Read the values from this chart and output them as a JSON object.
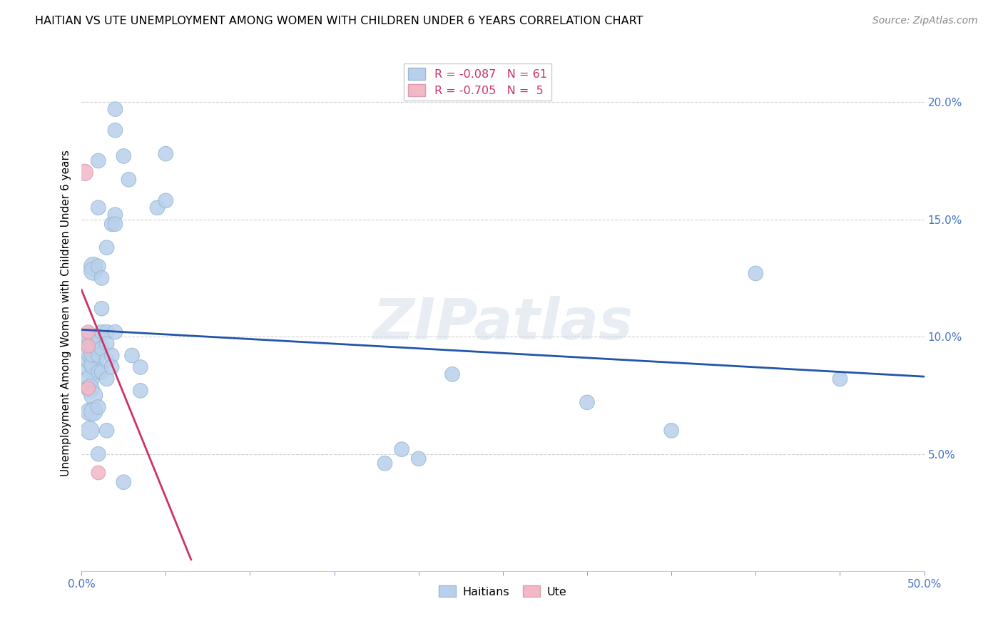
{
  "title": "HAITIAN VS UTE UNEMPLOYMENT AMONG WOMEN WITH CHILDREN UNDER 6 YEARS CORRELATION CHART",
  "source": "Source: ZipAtlas.com",
  "ylabel": "Unemployment Among Women with Children Under 6 years",
  "xlim": [
    0.0,
    0.5
  ],
  "ylim": [
    0.0,
    0.22
  ],
  "xticks_show": [
    0.0,
    0.5
  ],
  "yticks": [
    0.05,
    0.1,
    0.15,
    0.2
  ],
  "blue_color": "#b8d0ea",
  "blue_edge_color": "#9ab8d8",
  "pink_color": "#f2b8c6",
  "pink_edge_color": "#e09ab0",
  "blue_line_color": "#2255aa",
  "pink_line_color": "#cc3366",
  "watermark": "ZIPatlas",
  "legend_r_blue": "R = -0.087",
  "legend_n_blue": "N = 61",
  "legend_r_pink": "R = -0.705",
  "legend_n_pink": "N =  5",
  "blue_scatter": [
    [
      0.005,
      0.097
    ],
    [
      0.005,
      0.086
    ],
    [
      0.005,
      0.082
    ],
    [
      0.005,
      0.09
    ],
    [
      0.005,
      0.1
    ],
    [
      0.005,
      0.078
    ],
    [
      0.005,
      0.093
    ],
    [
      0.005,
      0.068
    ],
    [
      0.005,
      0.06
    ],
    [
      0.007,
      0.13
    ],
    [
      0.007,
      0.128
    ],
    [
      0.007,
      0.088
    ],
    [
      0.007,
      0.075
    ],
    [
      0.007,
      0.093
    ],
    [
      0.007,
      0.097
    ],
    [
      0.007,
      0.068
    ],
    [
      0.01,
      0.175
    ],
    [
      0.01,
      0.155
    ],
    [
      0.01,
      0.13
    ],
    [
      0.01,
      0.1
    ],
    [
      0.01,
      0.098
    ],
    [
      0.01,
      0.092
    ],
    [
      0.01,
      0.085
    ],
    [
      0.01,
      0.07
    ],
    [
      0.01,
      0.05
    ],
    [
      0.012,
      0.125
    ],
    [
      0.012,
      0.112
    ],
    [
      0.012,
      0.102
    ],
    [
      0.012,
      0.095
    ],
    [
      0.012,
      0.085
    ],
    [
      0.015,
      0.138
    ],
    [
      0.015,
      0.102
    ],
    [
      0.015,
      0.097
    ],
    [
      0.015,
      0.09
    ],
    [
      0.015,
      0.082
    ],
    [
      0.015,
      0.06
    ],
    [
      0.018,
      0.148
    ],
    [
      0.018,
      0.092
    ],
    [
      0.018,
      0.087
    ],
    [
      0.02,
      0.197
    ],
    [
      0.02,
      0.188
    ],
    [
      0.02,
      0.152
    ],
    [
      0.02,
      0.148
    ],
    [
      0.02,
      0.102
    ],
    [
      0.025,
      0.177
    ],
    [
      0.025,
      0.038
    ],
    [
      0.028,
      0.167
    ],
    [
      0.03,
      0.092
    ],
    [
      0.035,
      0.087
    ],
    [
      0.035,
      0.077
    ],
    [
      0.045,
      0.155
    ],
    [
      0.05,
      0.178
    ],
    [
      0.05,
      0.158
    ],
    [
      0.18,
      0.046
    ],
    [
      0.19,
      0.052
    ],
    [
      0.2,
      0.048
    ],
    [
      0.22,
      0.084
    ],
    [
      0.3,
      0.072
    ],
    [
      0.35,
      0.06
    ],
    [
      0.4,
      0.127
    ],
    [
      0.45,
      0.082
    ]
  ],
  "pink_scatter": [
    [
      0.002,
      0.17
    ],
    [
      0.004,
      0.102
    ],
    [
      0.004,
      0.096
    ],
    [
      0.004,
      0.078
    ],
    [
      0.01,
      0.042
    ]
  ],
  "blue_line_x": [
    0.0,
    0.5
  ],
  "blue_line_y": [
    0.103,
    0.083
  ],
  "pink_line_x": [
    0.0,
    0.065
  ],
  "pink_line_y": [
    0.12,
    0.005
  ]
}
